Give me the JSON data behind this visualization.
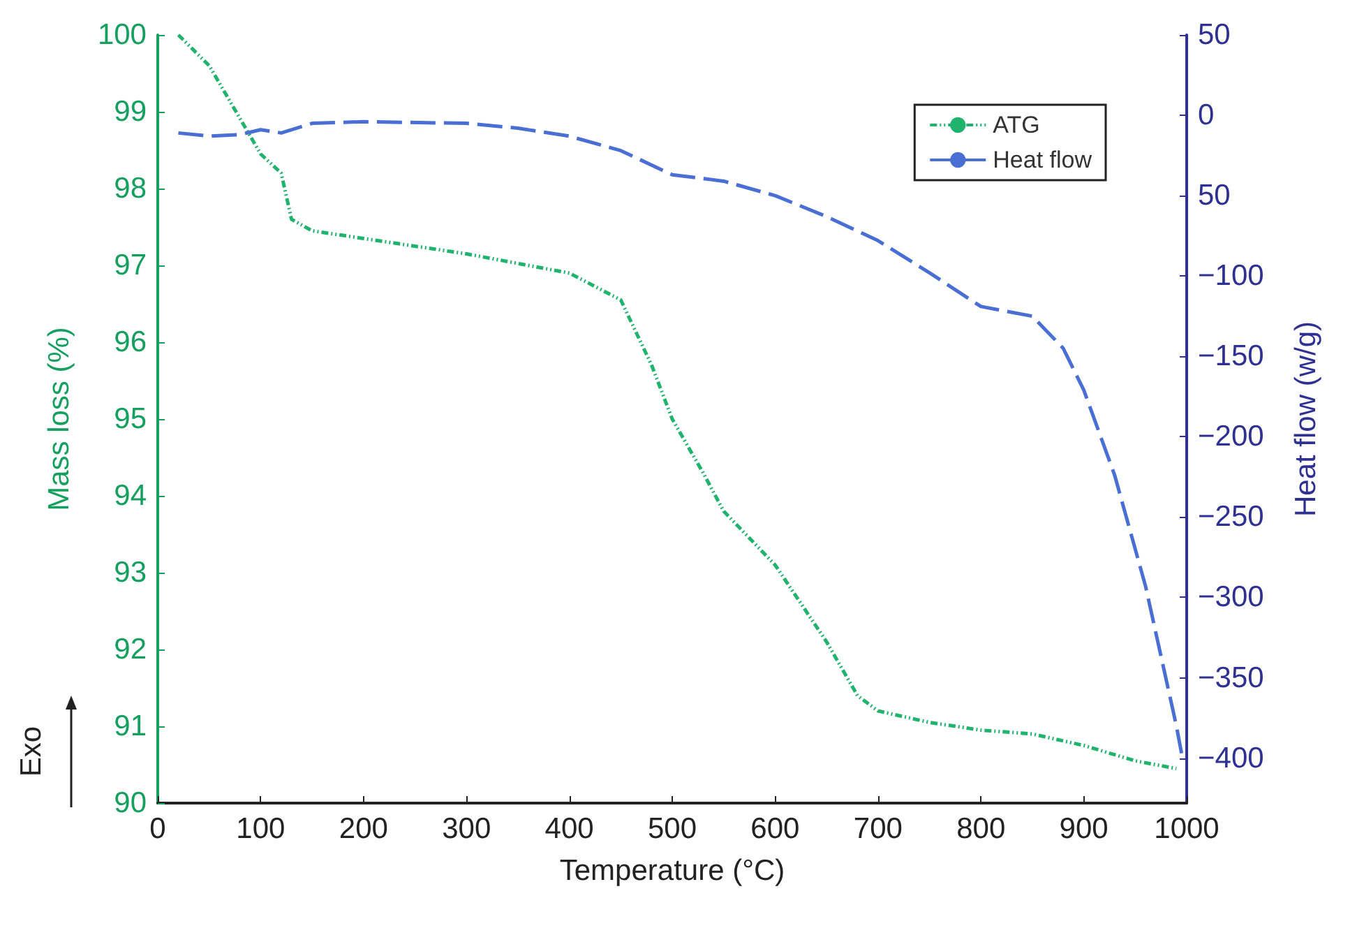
{
  "chart_data": {
    "type": "line",
    "xlabel": "Temperature (°C)",
    "ylabel": "Mass loss (%)",
    "y2label": "Heat flow (w/g)",
    "xlim": [
      0,
      1000
    ],
    "xticks": [
      0,
      100,
      200,
      300,
      400,
      500,
      600,
      700,
      800,
      900,
      1000
    ],
    "ylim": [
      90,
      100
    ],
    "yticks": [
      90,
      91,
      92,
      93,
      94,
      95,
      96,
      97,
      98,
      99,
      100
    ],
    "y2lim": [
      -428,
      50
    ],
    "y2ticks": [
      50,
      0,
      {
        "value": -50,
        "label": "50"
      },
      -100,
      -150,
      -200,
      -250,
      -300,
      -350,
      -400
    ],
    "legend": "top right",
    "marker": "none",
    "grid": false,
    "annotations": [
      "Exo"
    ],
    "series": [
      {
        "name": "ATG",
        "color": "#1fb36e",
        "line_style": "dotted",
        "x": [
          20,
          50,
          100,
          120,
          130,
          150,
          200,
          300,
          400,
          450,
          480,
          500,
          530,
          550,
          600,
          650,
          680,
          700,
          750,
          800,
          850,
          900,
          950,
          990
        ],
        "values": [
          100,
          99.6,
          98.45,
          98.2,
          97.6,
          97.45,
          97.35,
          97.15,
          96.9,
          96.55,
          95.7,
          95.0,
          94.3,
          93.8,
          93.1,
          92.1,
          91.4,
          91.2,
          91.05,
          90.95,
          90.9,
          90.75,
          90.55,
          90.45
        ]
      },
      {
        "name": "Heat flow",
        "color": "#4a6fd4",
        "line_style": "dashed",
        "axis": "y2",
        "x": [
          20,
          50,
          80,
          100,
          120,
          150,
          200,
          300,
          350,
          400,
          450,
          500,
          550,
          600,
          650,
          700,
          750,
          800,
          850,
          880,
          900,
          930,
          960,
          990,
          995
        ],
        "values": [
          -11,
          -13,
          -12,
          -9,
          -11,
          -5,
          -4,
          -5,
          -8,
          -13,
          -22,
          -37,
          -41,
          -50,
          -63,
          -78,
          -98,
          -119,
          -125,
          -145,
          -171,
          -224,
          -293,
          -380,
          -397
        ]
      }
    ]
  }
}
